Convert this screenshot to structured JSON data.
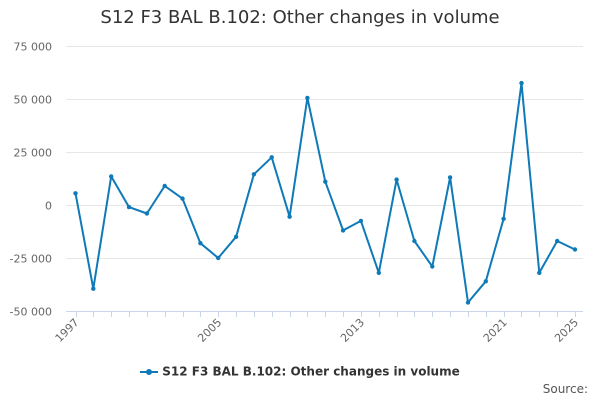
{
  "chart_data": {
    "type": "line",
    "title": "S12 F3 BAL B.102: Other changes in volume",
    "xlabel": "",
    "ylabel": "",
    "x": [
      1997,
      1998,
      1999,
      2000,
      2001,
      2002,
      2003,
      2004,
      2005,
      2006,
      2007,
      2008,
      2009,
      2010,
      2011,
      2012,
      2013,
      2014,
      2015,
      2016,
      2017,
      2018,
      2019,
      2020,
      2021,
      2022,
      2023,
      2024,
      2025
    ],
    "x_tick_labels": [
      "1997",
      "2005",
      "2013",
      "2021",
      "2025"
    ],
    "xlim": [
      1997,
      2025
    ],
    "ylim": [
      -50000,
      75000
    ],
    "y_tick_values": [
      75000,
      50000,
      25000,
      0,
      -25000,
      -50000
    ],
    "y_tick_labels": [
      "75 000",
      "50 000",
      "25 000",
      "0",
      "-25 000",
      "-50 000"
    ],
    "grid": true,
    "legend_position": "bottom-center",
    "series": [
      {
        "name": "S12 F3 BAL B.102: Other changes in volume",
        "color": "#0f7ab8",
        "values": [
          5500,
          -39500,
          13500,
          -1000,
          -4000,
          9000,
          3000,
          -18000,
          -25000,
          -15000,
          14500,
          22500,
          -5500,
          50500,
          11000,
          -12000,
          -7500,
          -32000,
          12000,
          -17000,
          -29000,
          13000,
          -46000,
          -36000,
          -6500,
          57500,
          -32000,
          -17000,
          -21000
        ]
      }
    ]
  },
  "legend": {
    "label": "S12 F3 BAL B.102: Other changes in volume"
  },
  "footer": {
    "source_label": "Source:"
  }
}
